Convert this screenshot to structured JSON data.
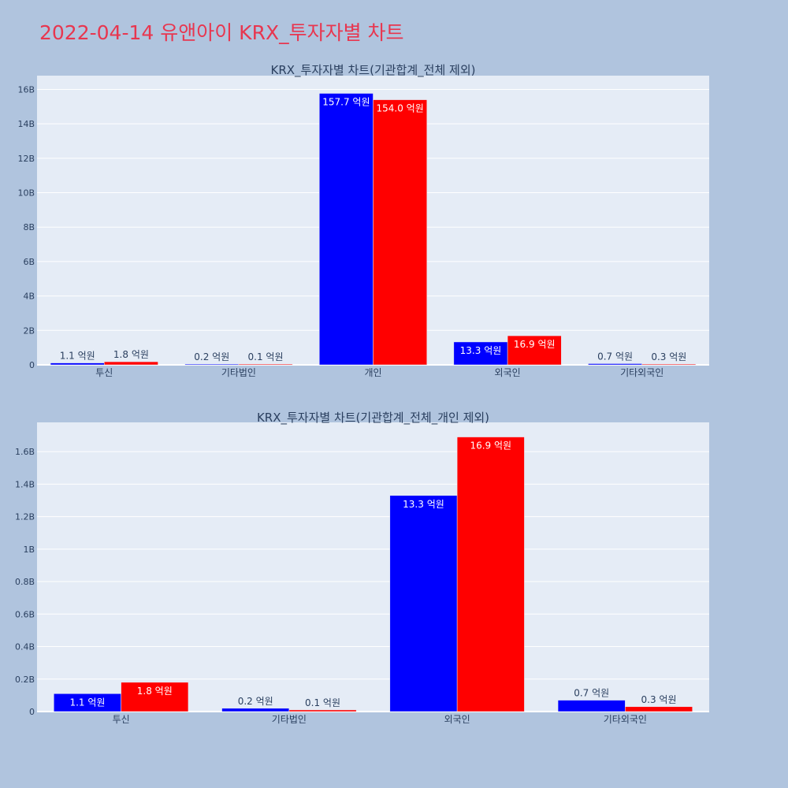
{
  "page": {
    "title": "2022-04-14 유앤아이 KRX_투자자별 차트",
    "colors": {
      "background": "#b0c4de",
      "plot_bg": "#e5ecf6",
      "title": "#e8364f",
      "buy": "#0000ff",
      "sell": "#ff0000"
    }
  },
  "chart_data": [
    {
      "type": "bar",
      "title": "KRX_투자자별 차트(기관합계_전체 제외)",
      "categories": [
        "투신",
        "기타법인",
        "개인",
        "외국인",
        "기타외국인"
      ],
      "series": [
        {
          "color": "#0000ff",
          "values": [
            110000000,
            20000000,
            15770000000,
            1330000000,
            70000000
          ],
          "labels": [
            "1.1 억원",
            "0.2 억원",
            "157.7 억원",
            "13.3 억원",
            "0.7 억원"
          ]
        },
        {
          "color": "#ff0000",
          "values": [
            180000000,
            10000000,
            15400000000,
            1690000000,
            30000000
          ],
          "labels": [
            "1.8 억원",
            "0.1 억원",
            "154.0 억원",
            "16.9 억원",
            "0.3 억원"
          ]
        }
      ],
      "yticks": [
        "0",
        "2B",
        "4B",
        "6B",
        "8B",
        "10B",
        "12B",
        "14B",
        "16B"
      ],
      "ytick_values": [
        0,
        2000000000,
        4000000000,
        6000000000,
        8000000000,
        10000000000,
        12000000000,
        14000000000,
        16000000000
      ],
      "ylim": [
        0,
        16800000000
      ],
      "grid": true,
      "legend": "none"
    },
    {
      "type": "bar",
      "title": "KRX_투자자별 차트(기관합계_전체_개인 제외)",
      "categories": [
        "투신",
        "기타법인",
        "외국인",
        "기타외국인"
      ],
      "series": [
        {
          "color": "#0000ff",
          "values": [
            110000000,
            20000000,
            1330000000,
            70000000
          ],
          "labels": [
            "1.1 억원",
            "0.2 억원",
            "13.3 억원",
            "0.7 억원"
          ]
        },
        {
          "color": "#ff0000",
          "values": [
            180000000,
            10000000,
            1690000000,
            30000000
          ],
          "labels": [
            "1.8 억원",
            "0.1 억원",
            "16.9 억원",
            "0.3 억원"
          ]
        }
      ],
      "yticks": [
        "0",
        "0.2B",
        "0.4B",
        "0.6B",
        "0.8B",
        "1B",
        "1.2B",
        "1.4B",
        "1.6B"
      ],
      "ytick_values": [
        0,
        200000000,
        400000000,
        600000000,
        800000000,
        1000000000,
        1200000000,
        1400000000,
        1600000000
      ],
      "ylim": [
        0,
        1780000000
      ],
      "grid": true,
      "legend": "none"
    }
  ]
}
